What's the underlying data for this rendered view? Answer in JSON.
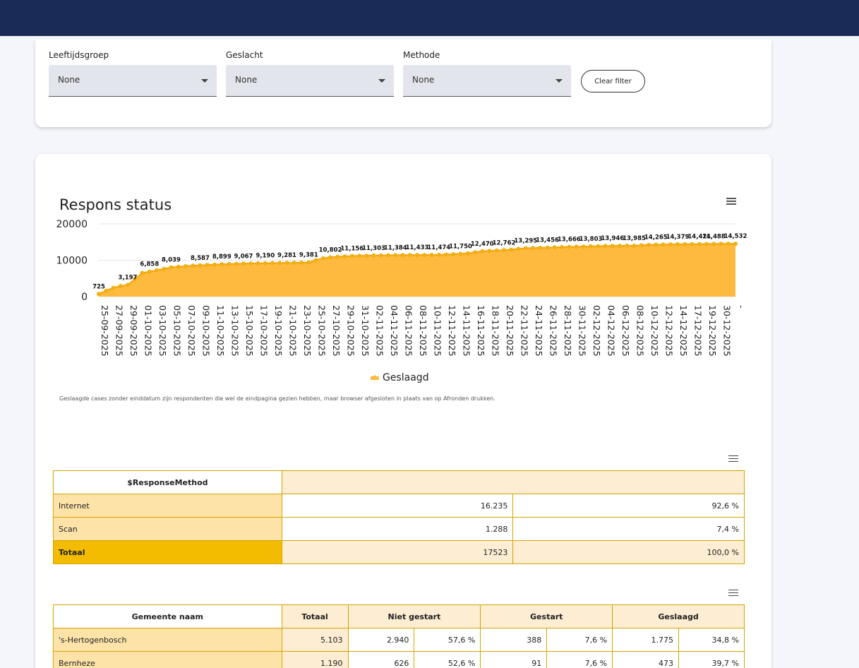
{
  "filters": [
    {
      "label": "Leeftijdsgroep",
      "value": "None"
    },
    {
      "label": "Geslacht",
      "value": "None"
    },
    {
      "label": "Methode",
      "value": "None"
    }
  ],
  "clear_filter_label": "Clear filter",
  "chart_data": {
    "type": "area",
    "title": "Respons status",
    "ylim": [
      0,
      20000
    ],
    "yticks": [
      "20000",
      "10000",
      "0"
    ],
    "x_tick_labels": [
      "25-09-2025",
      "27-09-2025",
      "29-09-2025",
      "01-10-2025",
      "03-10-2025",
      "05-10-2025",
      "07-10-2025",
      "09-10-2025",
      "11-10-2025",
      "13-10-2025",
      "15-10-2025",
      "17-10-2025",
      "19-10-2025",
      "21-10-2025",
      "23-10-2025",
      "25-10-2025",
      "27-10-2025",
      "29-10-2025",
      "31-10-2025",
      "02-11-2025",
      "04-11-2025",
      "06-11-2025",
      "08-11-2025",
      "10-11-2025",
      "12-11-2025",
      "14-11-2025",
      "16-11-2025",
      "18-11-2025",
      "20-11-2025",
      "22-11-2025",
      "24-11-2025",
      "26-11-2025",
      "28-11-2025",
      "30-11-2025",
      "02-12-2025",
      "04-12-2025",
      "06-12-2025",
      "08-12-2025",
      "10-12-2025",
      "12-12-2025",
      "14-12-2025",
      "17-12-2025",
      "19-12-2025",
      "30-12-2025",
      "-"
    ],
    "x": [
      "25-09-2025",
      "26-09-2025",
      "27-09-2025",
      "28-09-2025",
      "29-09-2025",
      "30-09-2025",
      "01-10-2025",
      "02-10-2025",
      "03-10-2025",
      "04-10-2025",
      "05-10-2025",
      "06-10-2025",
      "07-10-2025",
      "08-10-2025",
      "09-10-2025",
      "10-10-2025",
      "11-10-2025",
      "12-10-2025",
      "13-10-2025",
      "14-10-2025",
      "15-10-2025",
      "16-10-2025",
      "17-10-2025",
      "18-10-2025",
      "19-10-2025",
      "20-10-2025",
      "21-10-2025",
      "22-10-2025",
      "23-10-2025",
      "24-10-2025",
      "25-10-2025",
      "26-10-2025",
      "27-10-2025",
      "28-10-2025",
      "29-10-2025",
      "30-10-2025",
      "31-10-2025",
      "01-11-2025",
      "02-11-2025",
      "03-11-2025",
      "04-11-2025",
      "05-11-2025",
      "06-11-2025",
      "07-11-2025",
      "08-11-2025",
      "09-11-2025",
      "10-11-2025",
      "11-11-2025",
      "12-11-2025",
      "13-11-2025",
      "14-11-2025",
      "15-11-2025",
      "16-11-2025",
      "17-11-2025",
      "18-11-2025",
      "19-11-2025",
      "20-11-2025",
      "21-11-2025",
      "22-11-2025",
      "23-11-2025",
      "24-11-2025",
      "25-11-2025",
      "26-11-2025",
      "27-11-2025",
      "28-11-2025",
      "29-11-2025",
      "30-11-2025",
      "01-12-2025",
      "02-12-2025",
      "03-12-2025",
      "04-12-2025",
      "05-12-2025",
      "06-12-2025",
      "07-12-2025",
      "08-12-2025",
      "09-12-2025",
      "10-12-2025",
      "11-12-2025",
      "12-12-2025",
      "13-12-2025",
      "14-12-2025",
      "15-12-2025",
      "16-12-2025",
      "17-12-2025",
      "18-12-2025",
      "19-12-2025",
      "20-12-2025",
      "30-12-2025",
      "-"
    ],
    "series": [
      {
        "name": "Geslaagd",
        "color": "#fdba3f",
        "values": [
          725,
          1600,
          2400,
          2900,
          3197,
          4800,
          6500,
          6858,
          7200,
          7600,
          8039,
          8200,
          8350,
          8500,
          8587,
          8700,
          8800,
          8899,
          8950,
          9000,
          9067,
          9100,
          9150,
          9190,
          9210,
          9230,
          9281,
          9300,
          9320,
          9381,
          10000,
          10500,
          10802,
          10950,
          11050,
          11156,
          11200,
          11250,
          11303,
          11330,
          11360,
          11384,
          11395,
          11410,
          11433,
          11445,
          11460,
          11474,
          11550,
          11650,
          11750,
          11900,
          12200,
          12470,
          12550,
          12650,
          12762,
          12900,
          13100,
          13295,
          13350,
          13400,
          13456,
          13520,
          13600,
          13666,
          13700,
          13750,
          13803,
          13850,
          13900,
          13946,
          13960,
          13975,
          13985,
          14100,
          14200,
          14265,
          14300,
          14340,
          14379,
          14395,
          14410,
          14421,
          14450,
          14488,
          14500,
          14510,
          14532
        ],
        "labels": [
          {
            "i": 0,
            "text": "725"
          },
          {
            "i": 4,
            "text": "3,197"
          },
          {
            "i": 7,
            "text": "6,858"
          },
          {
            "i": 10,
            "text": "8,039"
          },
          {
            "i": 14,
            "text": "8,587"
          },
          {
            "i": 17,
            "text": "8,899"
          },
          {
            "i": 20,
            "text": "9,067"
          },
          {
            "i": 23,
            "text": "9,190"
          },
          {
            "i": 26,
            "text": "9,281"
          },
          {
            "i": 29,
            "text": "9,381"
          },
          {
            "i": 32,
            "text": "10,802"
          },
          {
            "i": 35,
            "text": "11,156"
          },
          {
            "i": 38,
            "text": "11,303"
          },
          {
            "i": 41,
            "text": "11,384"
          },
          {
            "i": 44,
            "text": "11,433"
          },
          {
            "i": 47,
            "text": "11,474"
          },
          {
            "i": 50,
            "text": "11,750"
          },
          {
            "i": 53,
            "text": "12,470"
          },
          {
            "i": 56,
            "text": "12,762"
          },
          {
            "i": 59,
            "text": "13,295"
          },
          {
            "i": 62,
            "text": "13,456"
          },
          {
            "i": 65,
            "text": "13,666"
          },
          {
            "i": 68,
            "text": "13,803"
          },
          {
            "i": 71,
            "text": "13,946"
          },
          {
            "i": 74,
            "text": "13,985"
          },
          {
            "i": 77,
            "text": "14,265"
          },
          {
            "i": 80,
            "text": "14,379"
          },
          {
            "i": 83,
            "text": "14,421"
          },
          {
            "i": 85,
            "text": "14,488"
          },
          {
            "i": 88,
            "text": "14,532"
          }
        ]
      }
    ],
    "legend": "bottom-center",
    "grid": true
  },
  "chart_note": "Geslaagde cases zonder einddatum zijn respondenten die wel de eindpagina gezien hebben, maar browser afgesloten in plaats van op Afronden drukken.",
  "method_table": {
    "header": "$ResponseMethod",
    "rows": [
      {
        "label": "Internet",
        "count": "16.235",
        "pct": "92,6 %"
      },
      {
        "label": "Scan",
        "count": "1.288",
        "pct": "7,4 %"
      }
    ],
    "total": {
      "label": "Totaal",
      "count": "17523",
      "pct": "100,0 %"
    }
  },
  "gemeente_table": {
    "headers": [
      "Gemeente naam",
      "Totaal",
      "Niet gestart",
      "Gestart",
      "Geslaagd"
    ],
    "rows": [
      {
        "name": "'s-Hertogenbosch",
        "totaal": "5.103",
        "niet_n": "2.940",
        "niet_p": "57,6 %",
        "gest_n": "388",
        "gest_p": "7,6 %",
        "gesl_n": "1.775",
        "gesl_p": "34,8 %"
      },
      {
        "name": "Bernheze",
        "totaal": "1.190",
        "niet_n": "626",
        "niet_p": "52,6 %",
        "gest_n": "91",
        "gest_p": "7,6 %",
        "gesl_n": "473",
        "gesl_p": "39,7 %"
      }
    ]
  }
}
